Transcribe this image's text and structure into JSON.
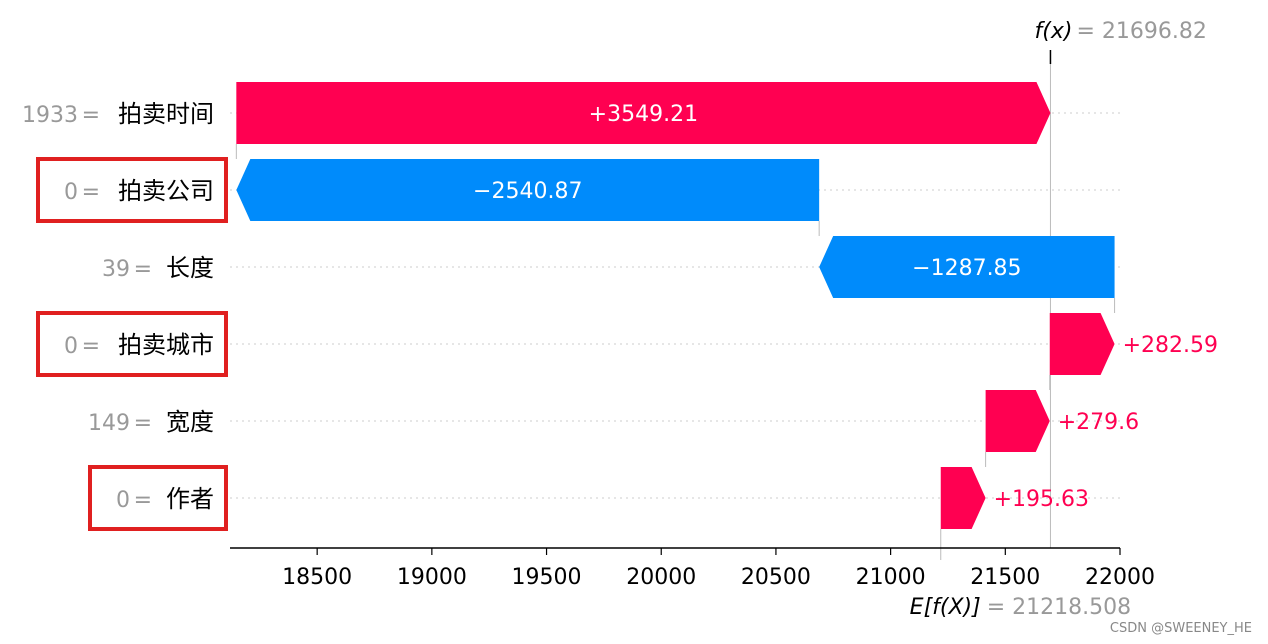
{
  "chart_data": {
    "type": "waterfall",
    "title": "",
    "fx": {
      "label": "f(x) = ",
      "value": "21696.82",
      "number": 21696.82
    },
    "ex": {
      "label": "E[f(X)] = ",
      "value": "21218.508",
      "number": 21218.508
    },
    "features": [
      {
        "value": "1933",
        "name": "拍卖时间",
        "contribution": 3549.21,
        "label": "+3549.21",
        "highlighted": false
      },
      {
        "value": "0",
        "name": "拍卖公司",
        "contribution": -2540.87,
        "label": "−2540.87",
        "highlighted": true
      },
      {
        "value": "39",
        "name": "长度",
        "contribution": -1287.85,
        "label": "−1287.85",
        "highlighted": false
      },
      {
        "value": "0",
        "name": "拍卖城市",
        "contribution": 282.59,
        "label": "+282.59",
        "highlighted": true
      },
      {
        "value": "149",
        "name": "宽度",
        "contribution": 279.6,
        "label": "+279.6",
        "highlighted": false
      },
      {
        "value": "0",
        "name": "作者",
        "contribution": 195.63,
        "label": "+195.63",
        "highlighted": true
      }
    ],
    "x_ticks": [
      18500,
      19000,
      19500,
      20000,
      20500,
      21000,
      21500,
      22000
    ],
    "xlim": [
      18120,
      22000
    ],
    "colors": {
      "positive": "#ff0051",
      "negative": "#008bfb",
      "highlight_box": "#e02020",
      "grid": "#cccccc"
    }
  },
  "watermark": "CSDN @SWEENEY_HE"
}
